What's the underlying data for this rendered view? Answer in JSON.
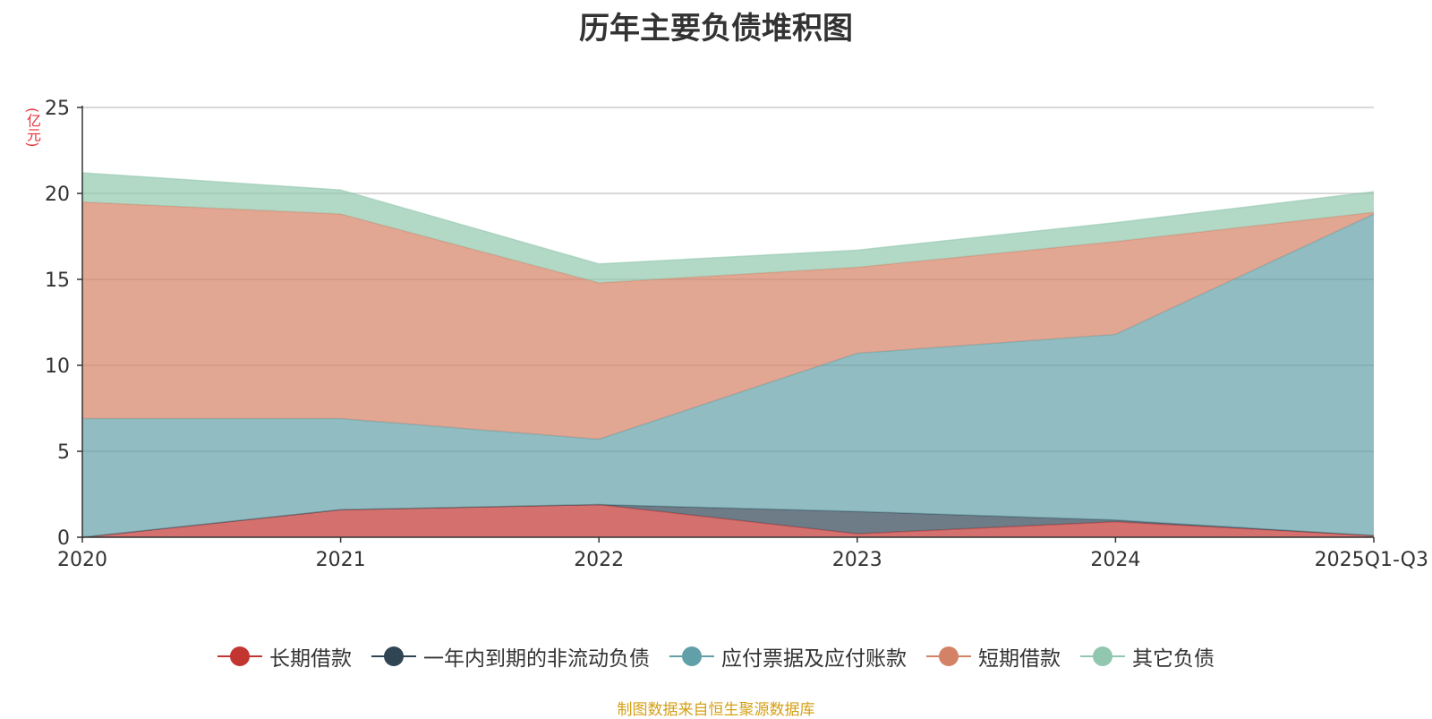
{
  "title": "历年主要负债堆积图",
  "unit_label": "(亿元)",
  "source_note": "制图数据来自恒生聚源数据库",
  "chart_data": {
    "type": "area",
    "stacked": true,
    "title": "历年主要负债堆积图",
    "ylabel": "(亿元)",
    "xlabel": "",
    "categories": [
      "2020",
      "2021",
      "2022",
      "2023",
      "2024",
      "2025Q1-Q3"
    ],
    "ylim": [
      0,
      25
    ],
    "yticks": [
      0,
      5,
      10,
      15,
      20,
      25
    ],
    "grid": true,
    "legend_position": "bottom",
    "series": [
      {
        "name": "长期借款",
        "color": "#c23531",
        "values": [
          0.0,
          1.6,
          1.9,
          0.2,
          0.9,
          0.1
        ]
      },
      {
        "name": "一年内到期的非流动负债",
        "color": "#2f4554",
        "values": [
          0.0,
          0.0,
          0.0,
          1.3,
          0.1,
          0.0
        ]
      },
      {
        "name": "应付票据及应付账款",
        "color": "#61a0a8",
        "values": [
          6.9,
          5.3,
          3.8,
          9.2,
          10.8,
          18.7
        ]
      },
      {
        "name": "短期借款",
        "color": "#d48265",
        "values": [
          12.6,
          11.9,
          9.1,
          5.0,
          5.4,
          0.1
        ]
      },
      {
        "name": "其它负债",
        "color": "#91c7ae",
        "values": [
          1.7,
          1.4,
          1.1,
          1.0,
          1.1,
          1.2
        ]
      }
    ]
  }
}
